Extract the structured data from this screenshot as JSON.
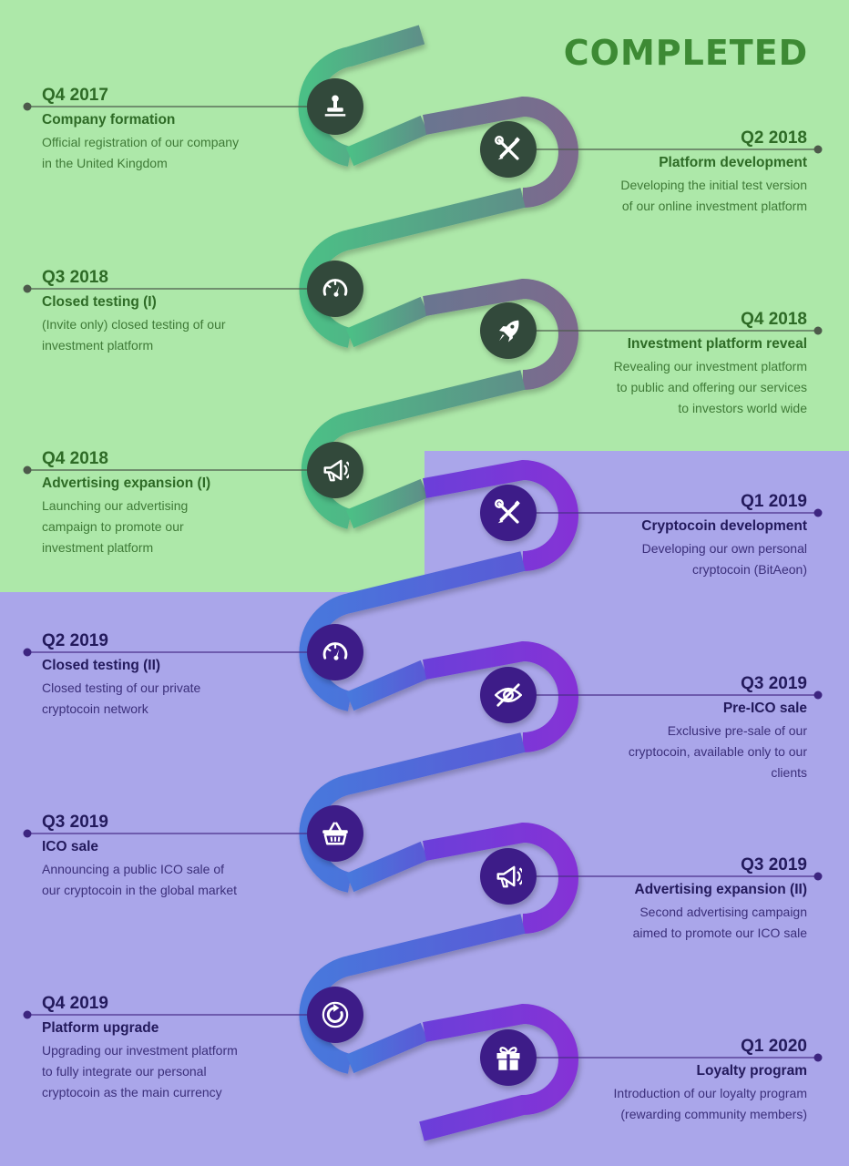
{
  "status_label": "COMPLETED",
  "colors": {
    "completed_bg": "#ade8a9",
    "upcoming_bg": "#aaa6ea",
    "completed_text": "#2e6b26",
    "upcoming_text": "#231a5c",
    "ribbon_green": "#4ab887",
    "ribbon_grey": "#7a6d8e",
    "ribbon_blue": "#4c6fd8",
    "ribbon_purple": "#7a32d8",
    "badge_dark": "#33483a",
    "badge_purple": "#3d1f88"
  },
  "milestones": [
    {
      "side": "left",
      "state": "done",
      "icon": "stamp-icon",
      "date": "Q4 2017",
      "title": "Company formation",
      "desc": [
        "Official registration of our company",
        "in the United Kingdom"
      ]
    },
    {
      "side": "right",
      "state": "done",
      "icon": "tools-icon",
      "date": "Q2 2018",
      "title": "Platform development",
      "desc": [
        "Developing the initial test version",
        "of our online investment platform"
      ]
    },
    {
      "side": "left",
      "state": "done",
      "icon": "gauge-icon",
      "date": "Q3 2018",
      "title": "Closed testing (I)",
      "desc": [
        "(Invite only) closed testing of our",
        "investment platform"
      ]
    },
    {
      "side": "right",
      "state": "done",
      "icon": "rocket-icon",
      "date": "Q4 2018",
      "title": "Investment platform reveal",
      "desc": [
        "Revealing our investment platform",
        "to public and offering our services",
        "to investors world wide"
      ]
    },
    {
      "side": "left",
      "state": "done",
      "icon": "megaphone-icon",
      "date": "Q4 2018",
      "title": "Advertising expansion (I)",
      "desc": [
        "Launching our advertising",
        "campaign to promote our",
        "investment platform"
      ]
    },
    {
      "side": "right",
      "state": "todo",
      "icon": "tools-icon",
      "date": "Q1 2019",
      "title": "Cryptocoin development",
      "desc": [
        "Developing our own personal",
        "cryptocoin (BitAeon)"
      ]
    },
    {
      "side": "left",
      "state": "todo",
      "icon": "gauge-icon",
      "date": "Q2 2019",
      "title": "Closed testing (II)",
      "desc": [
        "Closed testing of our private",
        "cryptocoin network"
      ]
    },
    {
      "side": "right",
      "state": "todo",
      "icon": "hidden-eye-icon",
      "date": "Q3 2019",
      "title": "Pre-ICO sale",
      "desc": [
        "Exclusive pre-sale of our",
        "cryptocoin, available only to our",
        "clients"
      ]
    },
    {
      "side": "left",
      "state": "todo",
      "icon": "basket-icon",
      "date": "Q3 2019",
      "title": "ICO sale",
      "desc": [
        "Announcing a public ICO sale of",
        "our cryptocoin in the global market"
      ]
    },
    {
      "side": "right",
      "state": "todo",
      "icon": "megaphone-icon",
      "date": "Q3 2019",
      "title": "Advertising expansion (II)",
      "desc": [
        "Second advertising campaign",
        "aimed to promote our ICO sale"
      ]
    },
    {
      "side": "left",
      "state": "todo",
      "icon": "refresh-icon",
      "date": "Q4 2019",
      "title": "Platform upgrade",
      "desc": [
        "Upgrading our investment platform",
        "to fully integrate our personal",
        "cryptocoin as the main currency"
      ]
    },
    {
      "side": "right",
      "state": "todo",
      "icon": "gift-icon",
      "date": "Q1 2020",
      "title": "Loyalty program",
      "desc": [
        "Introduction of our loyalty program",
        "(rewarding community members)"
      ]
    }
  ]
}
